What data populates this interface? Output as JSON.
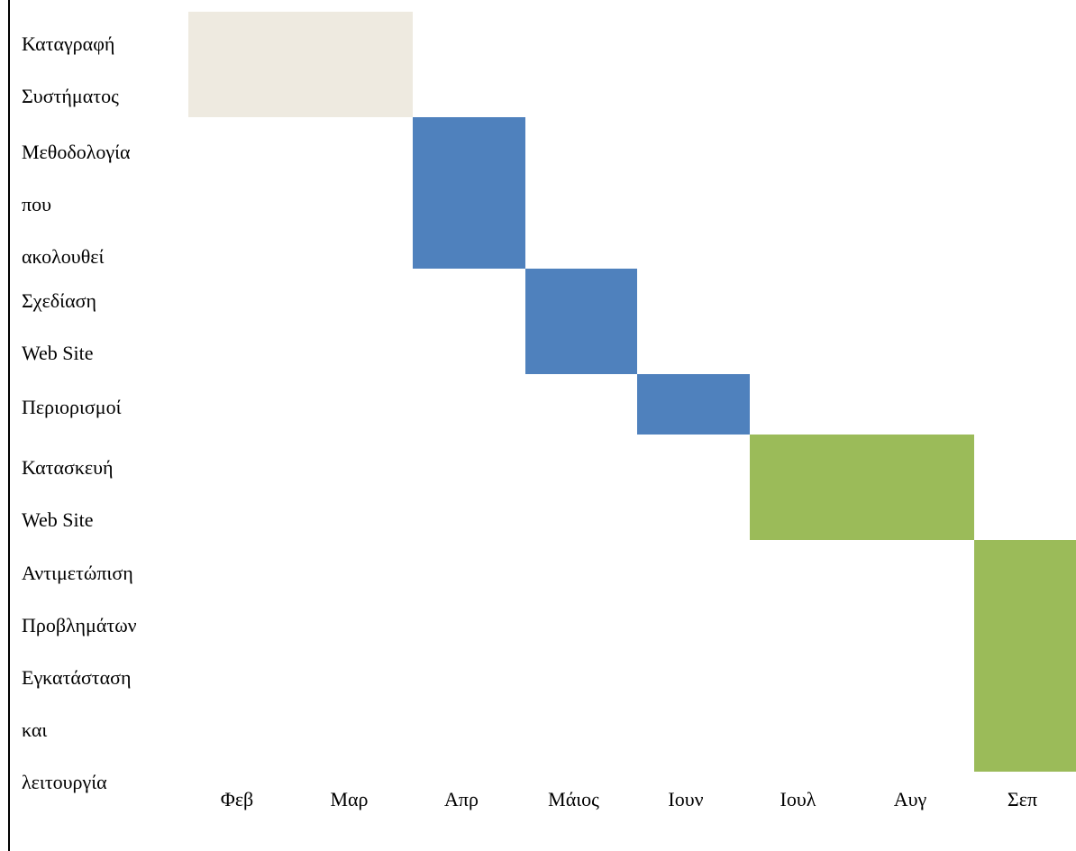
{
  "chart_data": {
    "type": "bar",
    "orientation": "gantt",
    "months": [
      "Φεβ",
      "Μαρ",
      "Απρ",
      "Μάιος",
      "Ιουν",
      "Ιουλ",
      "Αυγ",
      "Σεπ"
    ],
    "tasks": [
      {
        "label": "Καταγραφή\nΣυστήματος",
        "start": "Φεβ",
        "end": "Μαρ",
        "color": "#EEEAE0"
      },
      {
        "label": "Μεθοδολογία\nπου\nακολουθεί",
        "start": "Απρ",
        "end": "Απρ",
        "color": "#4F81BD"
      },
      {
        "label": "Σχεδίαση\nWeb Site",
        "start": "Μάιος",
        "end": "Μάιος",
        "color": "#4F81BD"
      },
      {
        "label": "Περιορισμοί",
        "start": "Ιουν",
        "end": "Ιουν",
        "color": "#4F81BD"
      },
      {
        "label": "Κατασκευή\nWeb Site",
        "start": "Ιουλ",
        "end": "Αυγ",
        "color": "#9BBB59"
      },
      {
        "label": "Αντιμετώπιση\nΠροβλημάτων",
        "start": "Σεπ",
        "end": "Σεπ",
        "color": "#9BBB59"
      },
      {
        "label": "Εγκατάσταση\nκαι\nλειτουργία",
        "start": "Σεπ",
        "end": "Σεπ",
        "color": "#9BBB59"
      }
    ],
    "grid": false,
    "legend": "none"
  }
}
